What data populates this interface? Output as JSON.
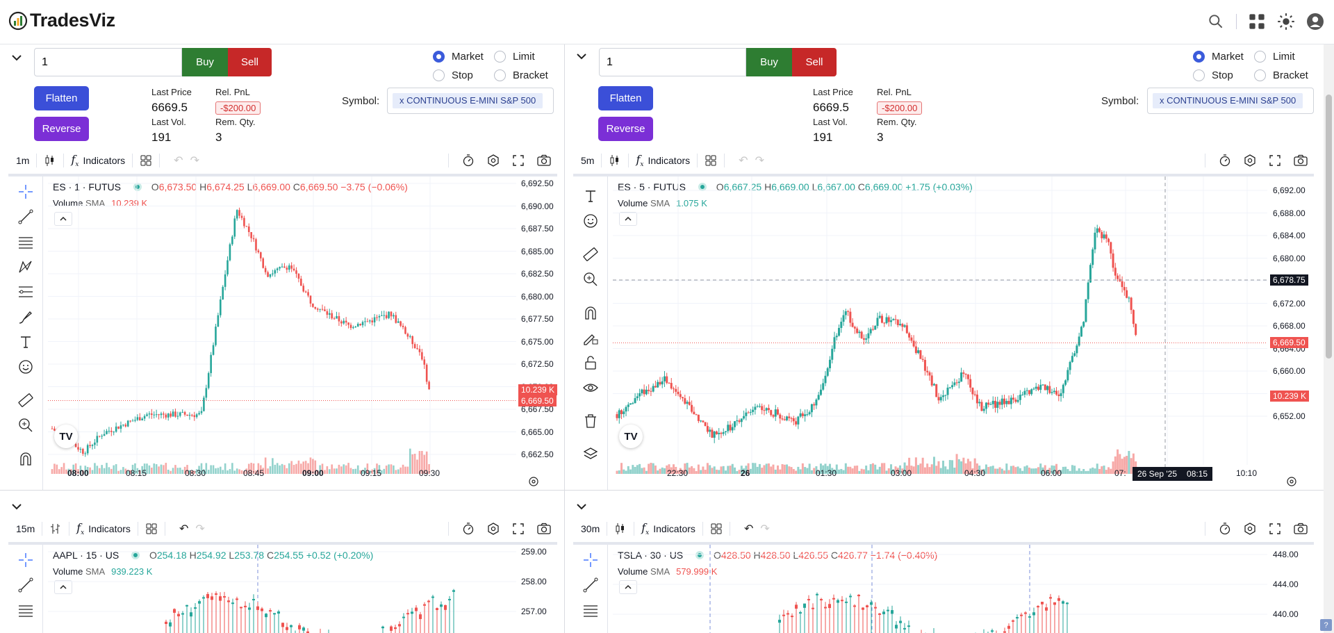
{
  "app": {
    "title": "TradesViz"
  },
  "panels": [
    {
      "qty": "1",
      "buy": "Buy",
      "sell": "Sell",
      "flatten": "Flatten",
      "reverse": "Reverse",
      "order_types": [
        {
          "label": "Market",
          "on": true
        },
        {
          "label": "Limit",
          "on": false
        },
        {
          "label": "Stop",
          "on": false
        },
        {
          "label": "Bracket",
          "on": false
        }
      ],
      "stats": {
        "last_price_label": "Last Price",
        "last_price": "6669.5",
        "rel_pnl_label": "Rel. PnL",
        "rel_pnl": "-$200.00",
        "last_vol_label": "Last Vol.",
        "last_vol": "191",
        "rem_qty_label": "Rem. Qty.",
        "rem_qty": "3"
      },
      "symbol_label": "Symbol:",
      "symbol": "x CONTINUOUS E-MINI S&P 500",
      "interval": "5m"
    }
  ],
  "charts": [
    {
      "interval": "1m",
      "indicators": "Indicators",
      "title": "ES · 1 · FUTUS",
      "ohlc": {
        "o": "6,673.50",
        "h": "6,674.25",
        "l": "6,669.00",
        "c": "6,669.50",
        "chg": "−3.75 (−0.06%)",
        "dir": "dn"
      },
      "vol_label": "Volume",
      "vol_sma": "SMA",
      "vol_value": "10.239 K",
      "y_ticks": [
        "6,692.50",
        "6,690.00",
        "6,687.50",
        "6,685.00",
        "6,682.50",
        "6,680.00",
        "6,677.50",
        "6,675.00",
        "6,672.50",
        "6,670.00",
        "6,667.50",
        "6,665.00",
        "6,662.50"
      ],
      "x_ticks": [
        "08:00",
        "08:15",
        "08:30",
        "08:45",
        "09:00",
        "09:15",
        "09:30"
      ],
      "x_bold": [
        0,
        4
      ],
      "vol_tag": "10.239 K",
      "price_tag": "6,669.50",
      "chart_data": {
        "type": "candlestick",
        "symbol": "ES",
        "interval": "1",
        "ylim": [
          6661.5,
          6693.5
        ],
        "last": 6669.5
      }
    },
    {
      "interval": "5m",
      "indicators": "Indicators",
      "title": "ES · 5 · FUTUS",
      "ohlc": {
        "o": "6,667.25",
        "h": "6,669.00",
        "l": "6,667.00",
        "c": "6,669.00",
        "chg": "+1.75 (+0.03%)",
        "dir": "up"
      },
      "vol_label": "Volume",
      "vol_sma": "SMA",
      "vol_value": "1.075 K",
      "y_ticks": [
        "6,692.00",
        "6,688.00",
        "6,684.00",
        "6,680.00",
        "6,676.00",
        "6,672.00",
        "6,668.00",
        "6,664.00",
        "6,660.00",
        "6,656.00",
        "6,652.00"
      ],
      "x_ticks": [
        "22:30",
        "26",
        "01:30",
        "03:00",
        "04:30",
        "06:00",
        "07:",
        "",
        "00",
        "10:10"
      ],
      "x_bold": [
        1
      ],
      "cross_tag": "6,678.75",
      "vol_tag": "10.239 K",
      "price_tag": "6,669.50",
      "cross_date": "26 Sep '25",
      "cross_time": "08:15",
      "chart_data": {
        "type": "candlestick",
        "symbol": "ES",
        "interval": "5",
        "ylim": [
          6650,
          6694
        ],
        "last": 6669.5
      }
    },
    {
      "interval": "15m",
      "indicators": "Indicators",
      "title": "AAPL · 15 · US",
      "ohlc": {
        "o": "254.18",
        "h": "254.92",
        "l": "253.78",
        "c": "254.55",
        "chg": "+0.52 (+0.20%)",
        "dir": "up"
      },
      "vol_label": "Volume",
      "vol_sma": "SMA",
      "vol_value": "939.223 K",
      "y_ticks": [
        "259.00",
        "258.00",
        "257.00"
      ],
      "chart_data": {
        "type": "candlestick",
        "symbol": "AAPL",
        "interval": "15",
        "ylim": [
          256,
          259.3
        ]
      }
    },
    {
      "interval": "30m",
      "indicators": "Indicators",
      "title": "TSLA · 30 · US",
      "ohlc": {
        "o": "428.50",
        "h": "428.50",
        "l": "426.55",
        "c": "426.77",
        "chg": "−1.74 (−0.40%)",
        "dir": "dn"
      },
      "vol_label": "Volume",
      "vol_sma": "SMA",
      "vol_value": "579.999 K",
      "y_ticks": [
        "448.00",
        "444.00",
        "440.00"
      ],
      "chart_data": {
        "type": "candlestick",
        "symbol": "TSLA",
        "interval": "30",
        "ylim": [
          437,
          449.5
        ]
      }
    }
  ]
}
